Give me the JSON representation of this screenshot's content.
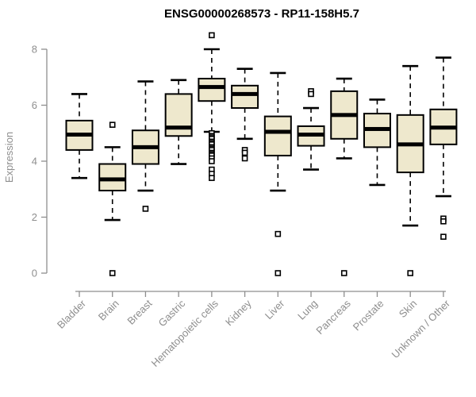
{
  "style": {
    "box_fill": "#EEE8CD",
    "box_stroke": "#000000",
    "median_color": "#000000",
    "axis_color": "#8e8e8e",
    "title_color": "#000000",
    "background": "#ffffff"
  },
  "chart_data": {
    "type": "boxplot",
    "title": "ENSG00000268573 - RP11-158H5.7",
    "xlabel": "",
    "ylabel": "Expression",
    "ylim": [
      0,
      8.6
    ],
    "yticks": [
      0,
      2,
      4,
      6,
      8
    ],
    "grid": false,
    "categories": [
      "Bladder",
      "Brain",
      "Breast",
      "Gastric",
      "Hematopoietic cells",
      "Kidney",
      "Liver",
      "Lung",
      "Pancreas",
      "Prostate",
      "Skin",
      "Unknown / Other"
    ],
    "series": [
      {
        "name": "Bladder",
        "low": 3.4,
        "q1": 4.4,
        "median": 4.95,
        "q3": 5.45,
        "high": 6.4,
        "outliers": []
      },
      {
        "name": "Brain",
        "low": 1.9,
        "q1": 2.95,
        "median": 3.35,
        "q3": 3.9,
        "high": 4.5,
        "outliers": [
          5.3,
          0
        ]
      },
      {
        "name": "Breast",
        "low": 2.95,
        "q1": 3.9,
        "median": 4.5,
        "q3": 5.1,
        "high": 6.85,
        "outliers": [
          2.3
        ]
      },
      {
        "name": "Gastric",
        "low": 3.9,
        "q1": 4.9,
        "median": 5.2,
        "q3": 6.4,
        "high": 6.9,
        "outliers": []
      },
      {
        "name": "Hematopoietic cells",
        "low": 5.05,
        "q1": 6.15,
        "median": 6.65,
        "q3": 6.95,
        "high": 8.0,
        "outliers": [
          8.5,
          5.0,
          4.9,
          4.85,
          4.8,
          4.7,
          4.65,
          4.6,
          4.5,
          4.45,
          4.4,
          4.3,
          4.25,
          4.2,
          4.1,
          4.0,
          3.7,
          3.55,
          3.4
        ]
      },
      {
        "name": "Kidney",
        "low": 4.8,
        "q1": 5.9,
        "median": 6.4,
        "q3": 6.7,
        "high": 7.3,
        "outliers": [
          4.4,
          4.3,
          4.1
        ]
      },
      {
        "name": "Liver",
        "low": 2.95,
        "q1": 4.2,
        "median": 5.05,
        "q3": 5.6,
        "high": 7.15,
        "outliers": [
          1.4,
          0
        ]
      },
      {
        "name": "Lung",
        "low": 3.7,
        "q1": 4.55,
        "median": 4.95,
        "q3": 5.25,
        "high": 5.9,
        "outliers": [
          6.5,
          6.4
        ]
      },
      {
        "name": "Pancreas",
        "low": 4.1,
        "q1": 4.8,
        "median": 5.65,
        "q3": 6.5,
        "high": 6.95,
        "outliers": [
          0
        ]
      },
      {
        "name": "Prostate",
        "low": 3.15,
        "q1": 4.5,
        "median": 5.15,
        "q3": 5.7,
        "high": 6.2,
        "outliers": []
      },
      {
        "name": "Skin",
        "low": 1.7,
        "q1": 3.6,
        "median": 4.6,
        "q3": 5.65,
        "high": 7.4,
        "outliers": [
          0
        ]
      },
      {
        "name": "Unknown / Other",
        "low": 2.75,
        "q1": 4.6,
        "median": 5.2,
        "q3": 5.85,
        "high": 7.7,
        "outliers": [
          1.95,
          1.85,
          1.3
        ]
      }
    ]
  }
}
